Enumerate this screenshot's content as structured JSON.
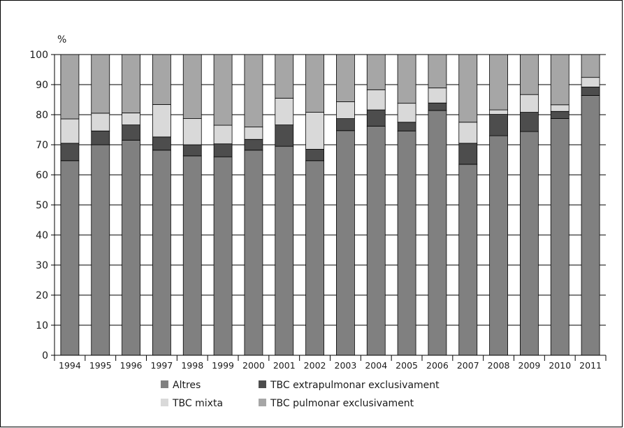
{
  "chart_data": {
    "type": "bar",
    "stacked": true,
    "ylabel": "%",
    "ylim": [
      0,
      100
    ],
    "yticks": [
      0,
      10,
      20,
      30,
      40,
      50,
      60,
      70,
      80,
      90,
      100
    ],
    "grid": true,
    "legend_position": "bottom",
    "categories": [
      "1994",
      "1995",
      "1996",
      "1997",
      "1998",
      "1999",
      "2000",
      "2001",
      "2002",
      "2003",
      "2004",
      "2005",
      "2006",
      "2007",
      "2008",
      "2009",
      "2010",
      "2011"
    ],
    "series": [
      {
        "name": "Altres",
        "color": "#808080",
        "values": [
          64.7,
          70.0,
          71.5,
          68.2,
          66.3,
          66.0,
          68.2,
          69.5,
          64.7,
          74.7,
          76.2,
          74.6,
          81.4,
          63.5,
          73.0,
          74.4,
          78.7,
          86.4
        ]
      },
      {
        "name": "TBC extrapulmonar exclusivament",
        "color": "#4d4d4d",
        "values": [
          5.8,
          4.6,
          5.1,
          4.4,
          3.7,
          4.3,
          3.6,
          7.1,
          3.8,
          4.0,
          5.4,
          2.9,
          2.5,
          7.0,
          7.1,
          6.4,
          2.4,
          2.8
        ]
      },
      {
        "name": "TBC mixta",
        "color": "#d9d9d9",
        "values": [
          8.1,
          5.9,
          4.0,
          10.8,
          8.7,
          6.2,
          4.1,
          8.9,
          12.3,
          5.6,
          6.7,
          6.3,
          5.0,
          7.0,
          1.5,
          5.9,
          2.2,
          3.2
        ]
      },
      {
        "name": "TBC pulmonar exclusivament",
        "color": "#a6a6a6",
        "values": [
          21.4,
          19.5,
          19.4,
          16.6,
          21.3,
          23.5,
          24.1,
          14.5,
          19.2,
          15.7,
          11.7,
          16.2,
          11.1,
          22.5,
          18.4,
          13.3,
          16.7,
          7.6
        ]
      }
    ]
  }
}
